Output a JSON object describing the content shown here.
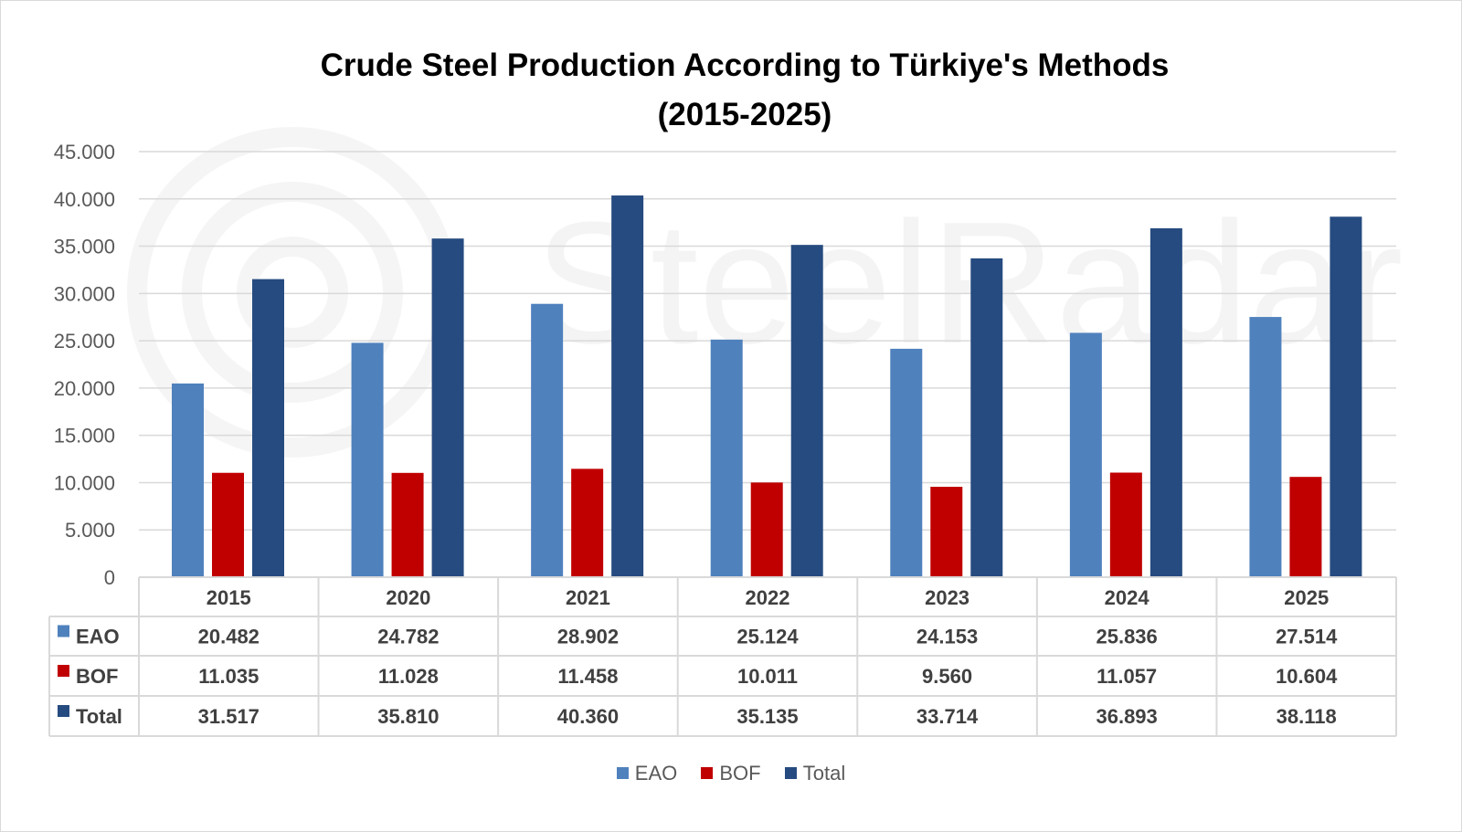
{
  "colors": {
    "EAO": "#4f81bd",
    "BOF": "#c00000",
    "Total": "#264b80"
  },
  "watermark": "SteelRadar",
  "chart_data": {
    "type": "bar",
    "title": "Crude Steel Production According to Türkiye's Methods",
    "subtitle": "(2015-2025)",
    "categories": [
      "2015",
      "2020",
      "2021",
      "2022",
      "2023",
      "2024",
      "2025"
    ],
    "series": [
      {
        "name": "EAO",
        "values": [
          20482,
          24782,
          28902,
          25124,
          24153,
          25836,
          27514
        ],
        "labels": [
          "20.482",
          "24.782",
          "28.902",
          "25.124",
          "24.153",
          "25.836",
          "27.514"
        ]
      },
      {
        "name": "BOF",
        "values": [
          11035,
          11028,
          11458,
          10011,
          9560,
          11057,
          10604
        ],
        "labels": [
          "11.035",
          "11.028",
          "11.458",
          "10.011",
          "9.560",
          "11.057",
          "10.604"
        ]
      },
      {
        "name": "Total",
        "values": [
          31517,
          35810,
          40360,
          35135,
          33714,
          36893,
          38118
        ],
        "labels": [
          "31.517",
          "35.810",
          "40.360",
          "35.135",
          "33.714",
          "36.893",
          "38.118"
        ]
      }
    ],
    "ylim": [
      0,
      45000
    ],
    "yticks": [
      0,
      5000,
      10000,
      15000,
      20000,
      25000,
      30000,
      35000,
      40000,
      45000
    ],
    "ytick_labels": [
      "0",
      "5.000",
      "10.000",
      "15.000",
      "20.000",
      "25.000",
      "30.000",
      "35.000",
      "40.000",
      "45.000"
    ],
    "grid": true,
    "legend_position": "bottom",
    "data_table": true
  }
}
